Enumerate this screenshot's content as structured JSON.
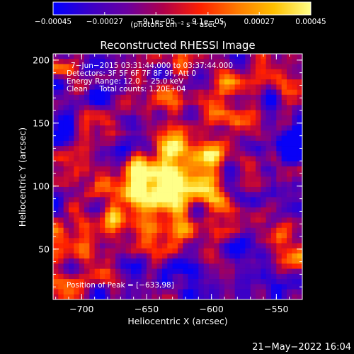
{
  "chart_data": {
    "type": "heatmap",
    "title": "Reconstructed RHESSI Image",
    "xlabel": "Heliocentric X (arcsec)",
    "ylabel": "Heliocentric Y (arcsec)",
    "xlim": [
      -722,
      -530
    ],
    "ylim": [
      10,
      205
    ],
    "x_ticks": [
      -700,
      -650,
      -600,
      -550
    ],
    "x_tick_labels": [
      "−700",
      "−650",
      "−600",
      "−550"
    ],
    "y_ticks": [
      50,
      100,
      150,
      200
    ],
    "y_tick_labels": [
      "50",
      "100",
      "150",
      "200"
    ],
    "colorbar": {
      "ticks": [
        -0.00045,
        -0.00027,
        -9.1e-05,
        9.1e-05,
        0.00027,
        0.00045
      ],
      "tick_labels": [
        "−0.00045",
        "−0.00027",
        "−9.1e−05",
        "9.1e−05",
        "0.00027",
        "0.00045"
      ],
      "range": [
        -0.00045,
        0.00045
      ],
      "unit_label": "(photons cm⁻² s⁻¹ asec⁻²)",
      "colors": [
        "#0000ff",
        "#3a00c8",
        "#6a00a0",
        "#b0004a",
        "#ff2000",
        "#ff7a00",
        "#ffc000",
        "#ffff88"
      ]
    },
    "peak": [
      -633,
      98
    ],
    "grid": false
  },
  "annotations": {
    "time_range": "7−Jun−2015 03:31:44.000 to 03:37:44.000",
    "detectors": "Detectors: 3F 5F 6F 7F 8F 9F, Att 0",
    "energy": "Energy Range: 12.0 − 25.0 keV",
    "method": "Clean     Total counts: 1.20E+04",
    "peak_text": "Position of Peak = [−633,98]"
  },
  "footer": {
    "timestamp": "21−May−2022 16:04"
  }
}
